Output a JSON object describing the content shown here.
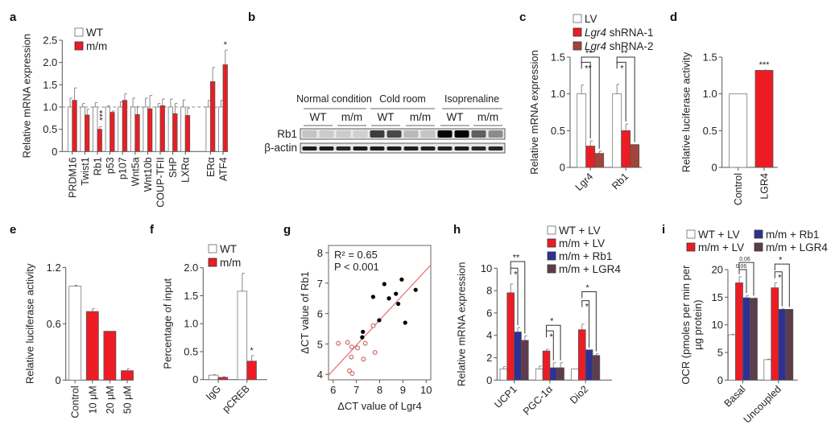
{
  "colors": {
    "wt": "#ffffff",
    "red": "#ed1c24",
    "brown": "#a3453a",
    "blue": "#2e3192",
    "plum": "#5e3c4c",
    "fit_line": "#ee6b6b",
    "open_point": "#c0504d",
    "filled_point": "#000000"
  },
  "chart_data": [
    {
      "panel": "a",
      "type": "bar",
      "ylabel": "Relative mRNA expression",
      "ylim": [
        0,
        2.5
      ],
      "yticks": [
        "0",
        "0.5",
        "1.0",
        "1.5",
        "2.0",
        "2.5"
      ],
      "ytick_values": [
        0,
        0.5,
        1,
        1.5,
        2,
        2.5
      ],
      "reference_line": 1.0,
      "categories": [
        "PRDM16",
        "Twist1",
        "Rb1",
        "p53",
        "p107",
        "Wnt5a",
        "Wnt10b",
        "COUP-TFII",
        "SHP",
        "LXRα",
        "ERα",
        "ATF4"
      ],
      "series": [
        {
          "name": "WT",
          "color": "wt",
          "values": [
            1,
            1,
            1,
            1,
            1,
            1,
            1,
            1,
            1,
            1,
            1,
            1
          ],
          "errors": [
            0.2,
            0.08,
            0.1,
            0.03,
            0.12,
            0.2,
            0.2,
            0.08,
            0.18,
            0.16,
            0.15,
            0.15
          ]
        },
        {
          "name": "m/m",
          "color": "red",
          "values": [
            1.15,
            0.82,
            0.5,
            0.88,
            1.15,
            0.83,
            0.96,
            1.03,
            0.85,
            0.81,
            1.57,
            1.95
          ],
          "errors": [
            0.28,
            0.13,
            0.06,
            0.03,
            0.15,
            0.18,
            0.3,
            0.15,
            0.23,
            0.16,
            0.32,
            0.33
          ]
        }
      ],
      "significance": [
        {
          "category": 2,
          "series": 1,
          "label": "***",
          "vertical": true
        },
        {
          "category": 11,
          "series": 1,
          "label": "*"
        }
      ]
    },
    {
      "panel": "c",
      "type": "bar",
      "ylabel": "Relative mRNA expression",
      "ylim": [
        0,
        1.5
      ],
      "yticks": [
        "0",
        "0.5",
        "1.0",
        "1.5"
      ],
      "ytick_values": [
        0,
        0.5,
        1,
        1.5
      ],
      "categories": [
        "Lgr4",
        "Rb1"
      ],
      "series": [
        {
          "name": "LV",
          "color": "wt",
          "values": [
            1,
            1
          ],
          "errors": [
            0.12,
            0.13
          ]
        },
        {
          "name": "Lgr4 shRNA-1",
          "color": "red",
          "values": [
            0.29,
            0.5
          ],
          "errors": [
            0.07,
            0.09
          ]
        },
        {
          "name": "Lgr4 shRNA-2",
          "color": "brown",
          "values": [
            0.19,
            0.31
          ],
          "errors": [
            0.03,
            0
          ]
        }
      ],
      "brackets": [
        {
          "category": 0,
          "from": 0,
          "to": 1,
          "level": 1.43,
          "label": "**"
        },
        {
          "category": 0,
          "from": 0,
          "to": 2,
          "level": 1.5,
          "label": "**"
        },
        {
          "category": 1,
          "from": 0,
          "to": 1,
          "level": 1.43,
          "label": "*"
        },
        {
          "category": 1,
          "from": 0,
          "to": 2,
          "level": 1.5,
          "label": "**"
        }
      ]
    },
    {
      "panel": "d",
      "type": "bar",
      "ylabel": "Relative luciferase activity",
      "ylim": [
        0,
        1.5
      ],
      "yticks": [
        "0",
        "0.5",
        "1.0",
        "1.5"
      ],
      "ytick_values": [
        0,
        0.5,
        1,
        1.5
      ],
      "categories": [
        "Control",
        "LGR4"
      ],
      "bars": [
        {
          "color": "wt",
          "value": 1,
          "error": 0
        },
        {
          "color": "red",
          "value": 1.32,
          "error": 0.005
        }
      ],
      "significance": [
        {
          "category": 1,
          "label": "***"
        }
      ]
    },
    {
      "panel": "e",
      "type": "bar",
      "ylabel": "Relative luciferase activity",
      "ylim": [
        0,
        1.2
      ],
      "yticks": [
        "0",
        "0.6",
        "1.2"
      ],
      "ytick_values": [
        0,
        0.6,
        1.2
      ],
      "categories": [
        "Control",
        "10 μM",
        "20 μM",
        "50 μM"
      ],
      "bars": [
        {
          "color": "wt",
          "value": 1.0,
          "error": 0.01
        },
        {
          "color": "red",
          "value": 0.73,
          "error": 0.03
        },
        {
          "color": "red",
          "value": 0.52,
          "error": 0
        },
        {
          "color": "red",
          "value": 0.1,
          "error": 0.02
        }
      ]
    },
    {
      "panel": "f",
      "type": "bar",
      "ylabel": "Percentage of input",
      "ylim": [
        0,
        2.0
      ],
      "yticks": [
        "0",
        "0.5",
        "1.0",
        "1.5",
        "2.0"
      ],
      "ytick_values": [
        0,
        0.5,
        1,
        1.5,
        2
      ],
      "categories": [
        "IgG",
        "pCREB"
      ],
      "series": [
        {
          "name": "WT",
          "color": "wt",
          "values": [
            0.08,
            1.58
          ],
          "errors": [
            0.01,
            0.32
          ]
        },
        {
          "name": "m/m",
          "color": "red",
          "values": [
            0.04,
            0.33
          ],
          "errors": [
            0.01,
            0.1
          ]
        }
      ],
      "significance": [
        {
          "category": 1,
          "series": 1,
          "label": "*"
        }
      ]
    },
    {
      "panel": "g",
      "type": "scatter",
      "xlabel": "ΔCT value of Lgr4",
      "ylabel": "ΔCT value of Rb1",
      "xlim": [
        5.8,
        10.2
      ],
      "ylim": [
        3.82,
        8.24
      ],
      "xticks": [
        "6",
        "7",
        "8",
        "9",
        "10"
      ],
      "xtick_values": [
        6,
        7,
        8,
        9,
        10
      ],
      "yticks": [
        "4",
        "5",
        "6",
        "7",
        "8"
      ],
      "ytick_values": [
        4,
        5,
        6,
        7,
        8
      ],
      "annotation": [
        "R² = 0.65",
        "P < 0.001"
      ],
      "fit_line": [
        [
          5.8,
          3.97
        ],
        [
          10.2,
          7.6
        ]
      ],
      "filled_points": [
        [
          7.28,
          5.4
        ],
        [
          7.25,
          5.22
        ],
        [
          7.98,
          5.78
        ],
        [
          7.72,
          6.55
        ],
        [
          8.2,
          6.97
        ],
        [
          8.4,
          6.5
        ],
        [
          8.7,
          6.65
        ],
        [
          8.8,
          6.32
        ],
        [
          8.95,
          7.12
        ],
        [
          9.1,
          5.7
        ],
        [
          9.55,
          6.78
        ]
      ],
      "open_points": [
        [
          6.22,
          5.02
        ],
        [
          6.62,
          5.05
        ],
        [
          6.8,
          4.9
        ],
        [
          7.05,
          4.87
        ],
        [
          7.38,
          5.02
        ],
        [
          7.72,
          5.6
        ],
        [
          6.78,
          4.57
        ],
        [
          7.3,
          4.5
        ],
        [
          7.8,
          4.72
        ],
        [
          6.7,
          4.12
        ],
        [
          6.82,
          4.03
        ]
      ]
    },
    {
      "panel": "h",
      "type": "bar",
      "ylabel": "Relative mRNA expression",
      "ylim": [
        0,
        10
      ],
      "yticks": [
        "0",
        "2",
        "4",
        "6",
        "8",
        "10"
      ],
      "ytick_values": [
        0,
        2,
        4,
        6,
        8,
        10
      ],
      "categories": [
        "UCP1",
        "PGC-1α",
        "Dio2"
      ],
      "series": [
        {
          "name": "WT + LV",
          "color": "wt",
          "values": [
            1,
            1,
            1
          ],
          "errors": [
            0.2,
            0.25,
            0
          ]
        },
        {
          "name": "m/m + LV",
          "color": "red",
          "values": [
            7.8,
            2.6,
            4.5
          ],
          "errors": [
            0.8,
            0.15,
            0.5
          ]
        },
        {
          "name": "m/m + Rb1",
          "color": "blue",
          "values": [
            4.3,
            1.1,
            2.7
          ],
          "errors": [
            0.4,
            0.45,
            0
          ]
        },
        {
          "name": "m/m + LGR4",
          "color": "plum",
          "values": [
            3.55,
            1.1,
            2.2
          ],
          "errors": [
            0.4,
            0.45,
            0.15
          ]
        }
      ],
      "brackets": [
        {
          "category": 0,
          "from": 1,
          "to": 2,
          "level": 10.0,
          "label": "*"
        },
        {
          "category": 0,
          "from": 1,
          "to": 3,
          "level": 10.6,
          "label": "**"
        },
        {
          "category": 1,
          "from": 1,
          "to": 2,
          "level": 4.4,
          "label": "*"
        },
        {
          "category": 1,
          "from": 1,
          "to": 3,
          "level": 4.9,
          "label": "*"
        },
        {
          "category": 2,
          "from": 1,
          "to": 2,
          "level": 7.1,
          "label": "*"
        },
        {
          "category": 2,
          "from": 1,
          "to": 3,
          "level": 7.9,
          "label": "*"
        }
      ]
    },
    {
      "panel": "i",
      "type": "bar",
      "ylabel": "OCR (pmoles per min per µg protein)",
      "ylabel_lines": [
        "OCR (pmoles per min per",
        "µg protein)"
      ],
      "ylim": [
        0,
        20
      ],
      "yticks": [
        "0",
        "5",
        "10",
        "15",
        "20"
      ],
      "ytick_values": [
        0,
        5,
        10,
        15,
        20
      ],
      "categories": [
        "Basal",
        "Uncoupled"
      ],
      "series": [
        {
          "name": "WT + LV",
          "color": "wt",
          "values": [
            8.2,
            3.7
          ],
          "errors": [
            0.1,
            0.1
          ]
        },
        {
          "name": "m/m + LV",
          "color": "red",
          "values": [
            17.6,
            16.7
          ],
          "errors": [
            1.1,
            0.9
          ]
        },
        {
          "name": "m/m + Rb1",
          "color": "blue",
          "values": [
            14.9,
            12.8
          ],
          "errors": [
            0.4,
            0.1
          ]
        },
        {
          "name": "m/m + LGR4",
          "color": "plum",
          "values": [
            14.8,
            12.8
          ],
          "errors": [
            0.05,
            0
          ]
        }
      ],
      "brackets": [
        {
          "category": 0,
          "from": 1,
          "to": 2,
          "level": 20.0,
          "label": "0.06",
          "small": true
        },
        {
          "category": 0,
          "from": 1,
          "to": 3,
          "level": 21.3,
          "label": "0.06",
          "small": true
        },
        {
          "category": 1,
          "from": 1,
          "to": 2,
          "level": 19.6,
          "label": "*"
        },
        {
          "category": 1,
          "from": 1,
          "to": 3,
          "level": 21.0,
          "label": "*"
        }
      ]
    }
  ],
  "blot": {
    "panel": "b",
    "conditions": [
      "Normal condition",
      "Cold room",
      "Isoprenaline"
    ],
    "genotypes": [
      "WT",
      "m/m",
      "WT",
      "m/m",
      "WT",
      "m/m"
    ],
    "rows": [
      {
        "label": "Rb1",
        "band_intensity": [
          0.15,
          0.12,
          0.12,
          0.1,
          0.75,
          0.7,
          0.2,
          0.15,
          1,
          1,
          0.6,
          0.4
        ]
      },
      {
        "label": "β-actin",
        "band_intensity": [
          0.9,
          0.9,
          0.85,
          0.9,
          0.9,
          0.9,
          0.88,
          0.88,
          0.88,
          0.9,
          0.85,
          0.85
        ]
      }
    ]
  }
}
